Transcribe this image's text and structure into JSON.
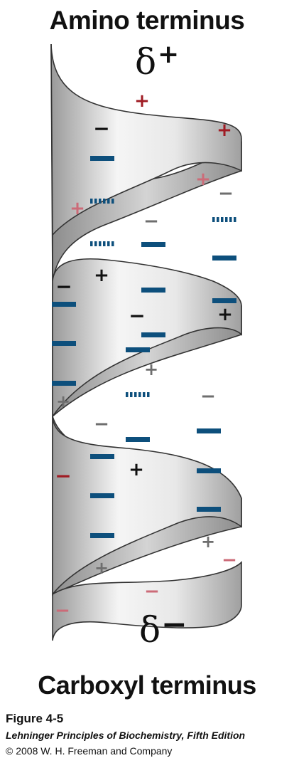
{
  "title_top": "Amino terminus",
  "title_bottom": "Carboxyl terminus",
  "delta_symbol": "δ",
  "delta_top_sign": "+",
  "delta_bottom_sign": "−",
  "caption": {
    "figure": "Figure 4-5",
    "book": "Lehninger Principles of Biochemistry, Fifth Edition",
    "copyright": "© 2008 W. H. Freeman and Company"
  },
  "colors": {
    "dark_red": "#a01c24",
    "light_red": "#cc6b78",
    "blue": "#0d4f7c",
    "black": "#111111",
    "gray": "#6e6e6e",
    "ribbon_light": "#f4f4f4",
    "ribbon_dark": "#a8a8a8"
  }
}
